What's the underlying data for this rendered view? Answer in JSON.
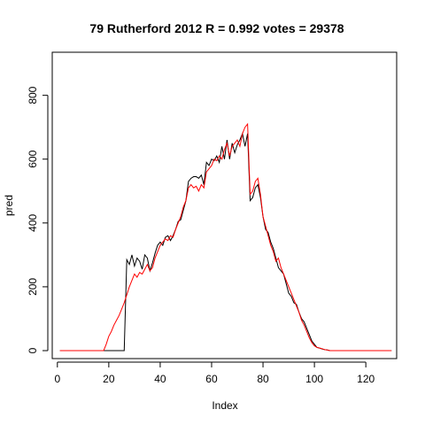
{
  "chart_data": {
    "type": "line",
    "title": "79 Rutherford 2012 R = 0.992 votes = 29378",
    "xlabel": "Index",
    "ylabel": "pred",
    "xlim": [
      -2,
      132
    ],
    "ylim": [
      -25,
      935
    ],
    "xticks": [
      0,
      20,
      40,
      60,
      80,
      100,
      120
    ],
    "yticks": [
      0,
      200,
      400,
      600,
      800
    ],
    "grid": false,
    "series": [
      {
        "color": "#000000",
        "x": [
          1,
          2,
          3,
          4,
          5,
          6,
          7,
          8,
          9,
          10,
          11,
          12,
          13,
          14,
          15,
          16,
          17,
          18,
          19,
          20,
          21,
          22,
          23,
          24,
          25,
          26,
          27,
          28,
          29,
          30,
          31,
          32,
          33,
          34,
          35,
          36,
          37,
          38,
          39,
          40,
          41,
          42,
          43,
          44,
          45,
          46,
          47,
          48,
          49,
          50,
          51,
          52,
          53,
          54,
          55,
          56,
          57,
          58,
          59,
          60,
          61,
          62,
          63,
          64,
          65,
          66,
          67,
          68,
          69,
          70,
          71,
          72,
          73,
          74,
          75,
          76,
          77,
          78,
          79,
          80,
          81,
          82,
          83,
          84,
          85,
          86,
          87,
          88,
          89,
          90,
          91,
          92,
          93,
          94,
          95,
          96,
          97,
          98,
          99,
          100,
          101,
          102,
          103,
          104,
          105,
          106,
          107,
          108,
          109,
          110,
          111,
          112,
          113,
          114,
          115,
          116,
          117,
          118,
          119,
          120,
          121,
          122,
          123,
          124,
          125,
          126,
          127,
          128,
          129,
          130
        ],
        "y": [
          0,
          0,
          0,
          0,
          0,
          0,
          0,
          0,
          0,
          0,
          0,
          0,
          0,
          0,
          0,
          0,
          0,
          0,
          0,
          0,
          0,
          0,
          0,
          0,
          0,
          0,
          285,
          270,
          300,
          265,
          290,
          280,
          255,
          300,
          290,
          250,
          275,
          305,
          330,
          340,
          330,
          355,
          360,
          345,
          360,
          380,
          405,
          410,
          440,
          470,
          530,
          540,
          545,
          545,
          540,
          550,
          520,
          590,
          580,
          600,
          595,
          610,
          590,
          640,
          600,
          660,
          600,
          650,
          620,
          645,
          660,
          680,
          640,
          680,
          470,
          480,
          510,
          520,
          480,
          420,
          380,
          370,
          340,
          320,
          290,
          260,
          250,
          240,
          210,
          180,
          170,
          150,
          145,
          120,
          100,
          90,
          70,
          50,
          30,
          20,
          10,
          8,
          5,
          3,
          2,
          0,
          0,
          0,
          0,
          0,
          0,
          0,
          0,
          0,
          0,
          0,
          0,
          0,
          0,
          0,
          0,
          0,
          0,
          0,
          0,
          0,
          0,
          0,
          0,
          0
        ]
      },
      {
        "color": "#ff0000",
        "x": [
          1,
          2,
          3,
          4,
          5,
          6,
          7,
          8,
          9,
          10,
          11,
          12,
          13,
          14,
          15,
          16,
          17,
          18,
          19,
          20,
          21,
          22,
          23,
          24,
          25,
          26,
          27,
          28,
          29,
          30,
          31,
          32,
          33,
          34,
          35,
          36,
          37,
          38,
          39,
          40,
          41,
          42,
          43,
          44,
          45,
          46,
          47,
          48,
          49,
          50,
          51,
          52,
          53,
          54,
          55,
          56,
          57,
          58,
          59,
          60,
          61,
          62,
          63,
          64,
          65,
          66,
          67,
          68,
          69,
          70,
          71,
          72,
          73,
          74,
          75,
          76,
          77,
          78,
          79,
          80,
          81,
          82,
          83,
          84,
          85,
          86,
          87,
          88,
          89,
          90,
          91,
          92,
          93,
          94,
          95,
          96,
          97,
          98,
          99,
          100,
          101,
          102,
          103,
          104,
          105,
          106,
          107,
          108,
          109,
          110,
          111,
          112,
          113,
          114,
          115,
          116,
          117,
          118,
          119,
          120,
          121,
          122,
          123,
          124,
          125,
          126,
          127,
          128,
          129,
          130
        ],
        "y": [
          0,
          0,
          0,
          0,
          0,
          0,
          0,
          0,
          0,
          0,
          0,
          0,
          0,
          0,
          0,
          0,
          0,
          0,
          20,
          45,
          60,
          80,
          95,
          110,
          130,
          150,
          175,
          200,
          220,
          240,
          230,
          245,
          240,
          255,
          270,
          250,
          260,
          290,
          310,
          330,
          340,
          350,
          345,
          360,
          355,
          380,
          400,
          420,
          450,
          470,
          510,
          520,
          510,
          515,
          500,
          520,
          510,
          560,
          570,
          580,
          600,
          595,
          610,
          600,
          630,
          650,
          610,
          640,
          650,
          660,
          640,
          680,
          700,
          710,
          490,
          500,
          530,
          540,
          490,
          420,
          390,
          360,
          330,
          310,
          280,
          290,
          260,
          240,
          220,
          200,
          180,
          160,
          140,
          120,
          95,
          80,
          60,
          40,
          25,
          15,
          10,
          8,
          6,
          3,
          2,
          0,
          0,
          0,
          0,
          0,
          0,
          0,
          0,
          0,
          0,
          0,
          0,
          0,
          0,
          0,
          0,
          0,
          0,
          0,
          0,
          0,
          0,
          0,
          0,
          0
        ]
      }
    ]
  }
}
